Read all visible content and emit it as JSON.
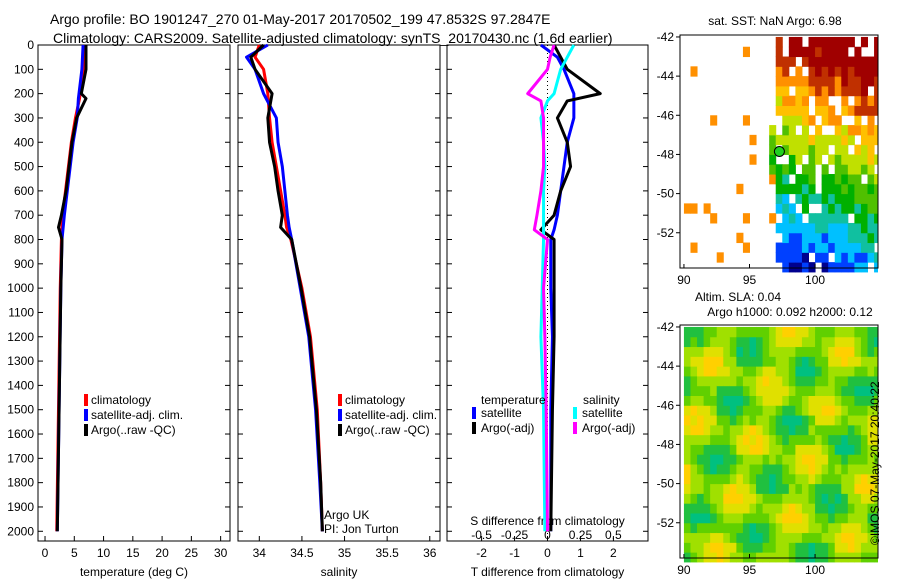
{
  "title_line1": "Argo profile: BO 1901247_270 01-May-2017 20170502_199 47.8532S 97.2847E",
  "title_line2": "Climatology: CARS2009. Satellite-adjusted climatology: synTS_20170430.nc (1.6d earlier)",
  "colors": {
    "clim": "#ff0000",
    "sat": "#0000ff",
    "argo": "#000000",
    "sal_sat": "#00ffff",
    "sal_argo": "#ff00ff"
  },
  "chart_data": [
    {
      "type": "line",
      "id": "temp",
      "xlabel": "temperature (deg C)",
      "xlim": [
        -1.2,
        31.6
      ],
      "xticks": [
        "0",
        "5",
        "10",
        "15",
        "20",
        "25",
        "30"
      ],
      "xtickvals": [
        0,
        5,
        10,
        15,
        20,
        25,
        30
      ],
      "ylim": [
        0,
        2040
      ],
      "yticks": [
        "0",
        "100",
        "200",
        "300",
        "400",
        "500",
        "600",
        "700",
        "800",
        "900",
        "1000",
        "1100",
        "1200",
        "1300",
        "1400",
        "1500",
        "1600",
        "1700",
        "1800",
        "1900",
        "2000"
      ],
      "legend": [
        "climatology",
        "satellite-adj. clim.",
        "Argo(..raw -QC)"
      ],
      "depth": [
        0,
        100,
        200,
        220,
        300,
        400,
        500,
        600,
        700,
        750,
        800,
        1000,
        1500,
        2000
      ],
      "series": [
        {
          "name": "climatology",
          "values": [
            6.8,
            6.6,
            6.0,
            5.9,
            5.2,
            4.5,
            4.0,
            3.5,
            3.0,
            2.9,
            2.8,
            2.6,
            2.3,
            2.0
          ]
        },
        {
          "name": "satellite-adj. clim.",
          "values": [
            6.5,
            6.3,
            5.8,
            5.7,
            5.5,
            4.8,
            4.3,
            3.8,
            3.3,
            3.1,
            2.9,
            2.7,
            2.4,
            2.1
          ]
        },
        {
          "name": "Argo(..raw -QC)",
          "values": [
            7.0,
            7.0,
            6.2,
            7.0,
            5.4,
            4.6,
            4.1,
            3.6,
            2.8,
            2.3,
            2.9,
            2.7,
            2.4,
            2.1
          ]
        }
      ]
    },
    {
      "type": "line",
      "id": "sal",
      "xlabel": "salinity",
      "xlim": [
        33.75,
        36.12
      ],
      "xticks": [
        "34",
        "34.5",
        "35",
        "35.5",
        "36"
      ],
      "xtickvals": [
        34,
        34.5,
        35,
        35.5,
        36
      ],
      "ylim": [
        0,
        2040
      ],
      "legend": [
        "climatology",
        "satellite-adj. clim.",
        "Argo(..raw -QC)"
      ],
      "annotation": [
        "Argo UK",
        "PI: Jon Turton"
      ],
      "depth": [
        0,
        50,
        100,
        200,
        300,
        400,
        500,
        600,
        700,
        750,
        800,
        1000,
        1200,
        1500,
        1800,
        2000
      ],
      "series": [
        {
          "name": "climatology",
          "values": [
            34.0,
            33.95,
            34.05,
            34.1,
            34.12,
            34.15,
            34.2,
            34.25,
            34.3,
            34.32,
            34.37,
            34.5,
            34.6,
            34.68,
            34.72,
            34.74
          ]
        },
        {
          "name": "satellite-adj. clim.",
          "values": [
            34.1,
            33.85,
            33.95,
            34.05,
            34.2,
            34.22,
            34.27,
            34.3,
            34.33,
            34.35,
            34.38,
            34.48,
            34.58,
            34.66,
            34.71,
            34.74
          ]
        },
        {
          "name": "Argo(..raw -QC)",
          "values": [
            34.05,
            33.9,
            33.95,
            34.15,
            34.1,
            34.12,
            34.18,
            34.22,
            34.27,
            34.25,
            34.38,
            34.49,
            34.59,
            34.67,
            34.72,
            34.74
          ]
        }
      ]
    },
    {
      "type": "line",
      "id": "diff",
      "xlabel": "T difference from climatology",
      "xlim": [
        -3.05,
        3.05
      ],
      "xticks": [
        "-2",
        "-1",
        "0",
        "1",
        "2"
      ],
      "xtickvals": [
        -2,
        -1,
        0,
        1,
        2
      ],
      "x2label": "S difference from climatology",
      "x2ticks": [
        "-0.5",
        "-0.25",
        "0",
        "0.25",
        "0.5"
      ],
      "x2tickvals": [
        -0.5,
        -0.25,
        0,
        0.25,
        0.5
      ],
      "ylim": [
        0,
        2040
      ],
      "legend_titles": [
        "temperature",
        "salinity"
      ],
      "legend": [
        "satellite",
        "Argo(-adj)",
        "satellite",
        "Argo(-adj)"
      ],
      "depth": [
        0,
        50,
        100,
        200,
        230,
        300,
        400,
        500,
        600,
        700,
        760,
        800,
        1000,
        1200,
        1500,
        2000
      ],
      "series": [
        {
          "name": "T satellite",
          "values": [
            -0.2,
            0.3,
            0.5,
            0.8,
            0.8,
            0.8,
            0.6,
            0.5,
            0.4,
            0.3,
            0.2,
            0.1,
            0.1,
            0.15,
            0.1,
            0.1
          ]
        },
        {
          "name": "T Argo(-adj)",
          "values": [
            0.2,
            0.4,
            0.6,
            1.6,
            0.6,
            0.3,
            0.6,
            0.7,
            0.4,
            0.2,
            -0.2,
            0.2,
            0.2,
            0.2,
            0.15,
            0.1
          ]
        },
        {
          "name": "S satellite",
          "values": [
            0.2,
            0.15,
            0.1,
            0.05,
            0.0,
            -0.05,
            -0.03,
            -0.02,
            -0.03,
            -0.03,
            -0.03,
            -0.03,
            -0.04,
            -0.05,
            -0.03,
            -0.02
          ]
        },
        {
          "name": "S Argo(-adj)",
          "values": [
            0.05,
            0.02,
            0.0,
            -0.15,
            -0.05,
            -0.03,
            -0.03,
            -0.03,
            -0.05,
            -0.08,
            -0.1,
            0.0,
            -0.03,
            -0.02,
            -0.01,
            0.0
          ]
        }
      ]
    },
    {
      "type": "heatmap",
      "id": "sst",
      "title": "sat. SST: NaN Argo: 6.98",
      "xlim": [
        89.7,
        104.8
      ],
      "ylim": [
        -53.8,
        -41.9
      ],
      "xticks": [
        "90",
        "95",
        "100"
      ],
      "xtickvals": [
        90,
        95,
        100
      ],
      "yticks": [
        "-42",
        "-44",
        "-46",
        "-48",
        "-50",
        "-52"
      ],
      "ytickvals": [
        -42,
        -44,
        -46,
        -48,
        -50,
        -52
      ],
      "marker": {
        "lon": 97.28,
        "lat": -47.85
      }
    },
    {
      "type": "heatmap",
      "id": "sla",
      "title": "Altim. SLA: 0.04",
      "subtitle": "Argo h1000: 0.092 h2000: 0.12",
      "xlim": [
        89.7,
        104.8
      ],
      "ylim": [
        -53.8,
        -41.9
      ],
      "xticks": [
        "90",
        "95",
        "100"
      ],
      "xtickvals": [
        90,
        95,
        100
      ],
      "yticks": [
        "-42",
        "-44",
        "-46",
        "-48",
        "-50",
        "-52"
      ],
      "ytickvals": [
        -42,
        -44,
        -46,
        -48,
        -50,
        -52
      ]
    }
  ],
  "credit": "©IMOS 07-May-2017 20:40:22"
}
